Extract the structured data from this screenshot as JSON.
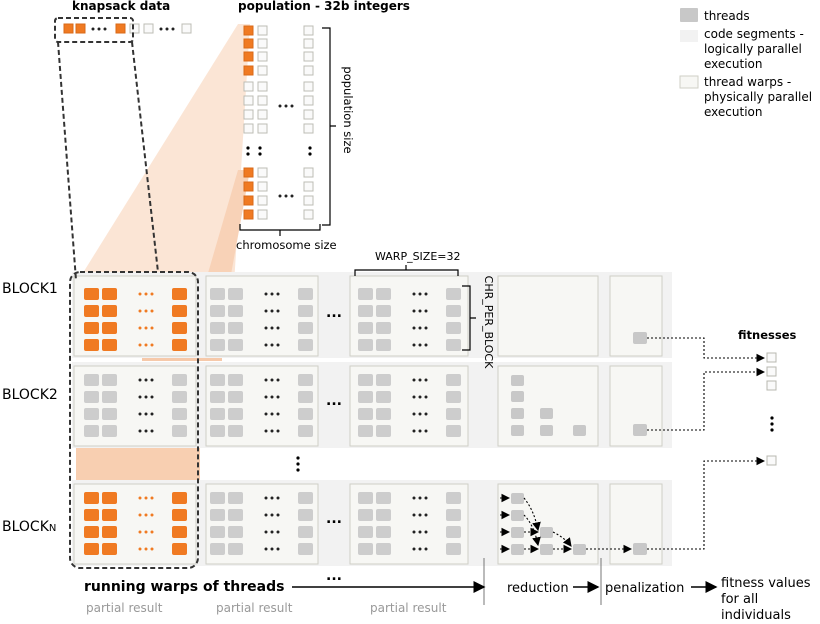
{
  "header": {
    "knapsack_label": "knapsack data",
    "population_label": "population - 32b integers"
  },
  "legend": {
    "threads": "threads",
    "segments": [
      "code segments -",
      "logically parallel",
      "execution"
    ],
    "warps": [
      "thread warps -",
      "physically parallel",
      "execution"
    ]
  },
  "annotations": {
    "population_size": "population size",
    "chromosome_size": "chromosome size",
    "warp_size": "WARP_SIZE=32",
    "chr_per_block": "CHR_PER_BLOCK",
    "fitnesses": "fitnesses",
    "ellipsis": "..."
  },
  "blocks": [
    {
      "main": "BLOCK1",
      "sub": ""
    },
    {
      "main": "BLOCK2",
      "sub": ""
    },
    {
      "main": "BLOCK",
      "sub": "N"
    }
  ],
  "footer": {
    "running": "running warps of threads",
    "partial_result": "partial result",
    "reduction": "reduction",
    "penalization": "penalization",
    "fitness_values": [
      "fitness values",
      "for all",
      "individuals"
    ]
  },
  "colors": {
    "orange": "#f07a22",
    "light_orange": "#fbe0cc",
    "thread_gray": "#cdcdcd",
    "segment_bg": "#f2f2f2",
    "warp_bg": "#f7f7f4",
    "box_border": "#cfcfc6"
  }
}
